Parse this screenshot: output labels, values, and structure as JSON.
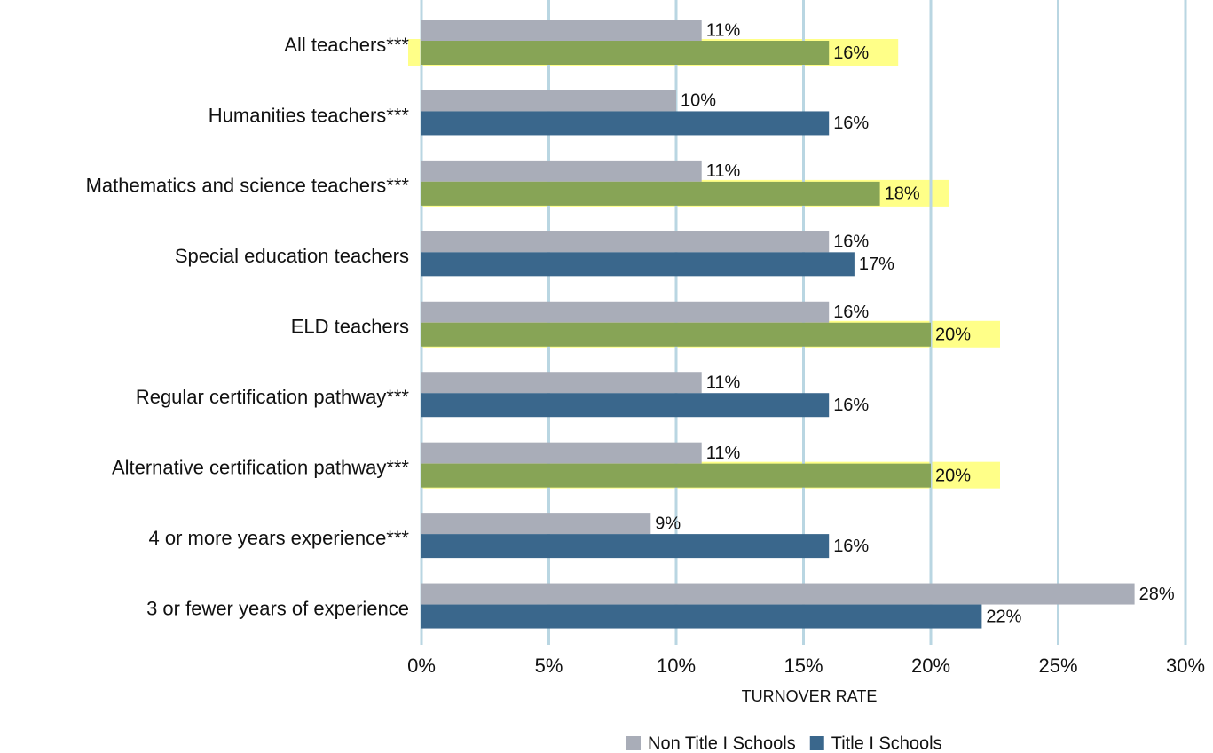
{
  "chart_data": {
    "type": "hbar",
    "categories": [
      "All teachers***",
      "Humanities teachers***",
      "Mathematics and science teachers***",
      "Special education teachers",
      "ELD teachers",
      "Regular certification pathway***",
      "Alternative certification pathway***",
      "4 or more years experience***",
      "3 or fewer years of experience"
    ],
    "series": [
      {
        "name": "Non Title I Schools",
        "color": "#a9adb8",
        "values": [
          11,
          10,
          11,
          16,
          16,
          11,
          11,
          9,
          28
        ],
        "value_labels": [
          "11%",
          "10%",
          "11%",
          "16%",
          "16%",
          "11%",
          "11%",
          "9%",
          "28%"
        ]
      },
      {
        "name": "Title I Schools",
        "color": "#3a678c",
        "bar_colors": [
          "#87a456",
          "#3a678c",
          "#87a456",
          "#3a678c",
          "#87a456",
          "#3a678c",
          "#87a456",
          "#3a678c",
          "#3a678c"
        ],
        "highlight_color": "#ffff88",
        "values": [
          16,
          16,
          18,
          17,
          20,
          16,
          20,
          16,
          22
        ],
        "value_labels": [
          "16%",
          "16%",
          "18%",
          "17%",
          "20%",
          "16%",
          "20%",
          "16%",
          "22%"
        ]
      }
    ],
    "xlabel": "TURNOVER RATE",
    "xlim": [
      0,
      30
    ],
    "xticks": [
      {
        "value": 0,
        "label": "0%"
      },
      {
        "value": 5,
        "label": "5%"
      },
      {
        "value": 10,
        "label": "10%"
      },
      {
        "value": 15,
        "label": "15%"
      },
      {
        "value": 20,
        "label": "20%"
      },
      {
        "value": 25,
        "label": "25%"
      },
      {
        "value": 30,
        "label": "30%"
      }
    ],
    "grid": true,
    "grid_color": "#b9d6e2",
    "legend": "bottom"
  }
}
